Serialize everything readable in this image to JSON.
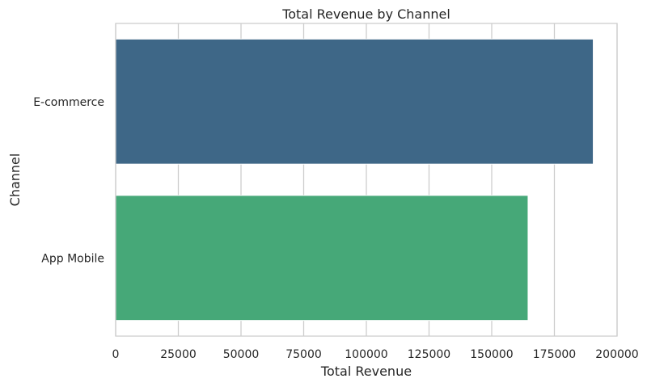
{
  "chart_data": {
    "type": "bar",
    "orientation": "horizontal",
    "title": "Total Revenue by Channel",
    "xlabel": "Total Revenue",
    "ylabel": "Channel",
    "categories": [
      "E-commerce",
      "App Mobile"
    ],
    "values": [
      190500,
      164500
    ],
    "colors": [
      "#3e6787",
      "#46a878"
    ],
    "xlim": [
      0,
      200000
    ],
    "xticks": [
      "0",
      "25000",
      "50000",
      "75000",
      "100000",
      "125000",
      "150000",
      "175000",
      "200000"
    ],
    "grid": "x-axis vertical lines",
    "background": "#ffffff",
    "grid_color": "#cccccc"
  }
}
